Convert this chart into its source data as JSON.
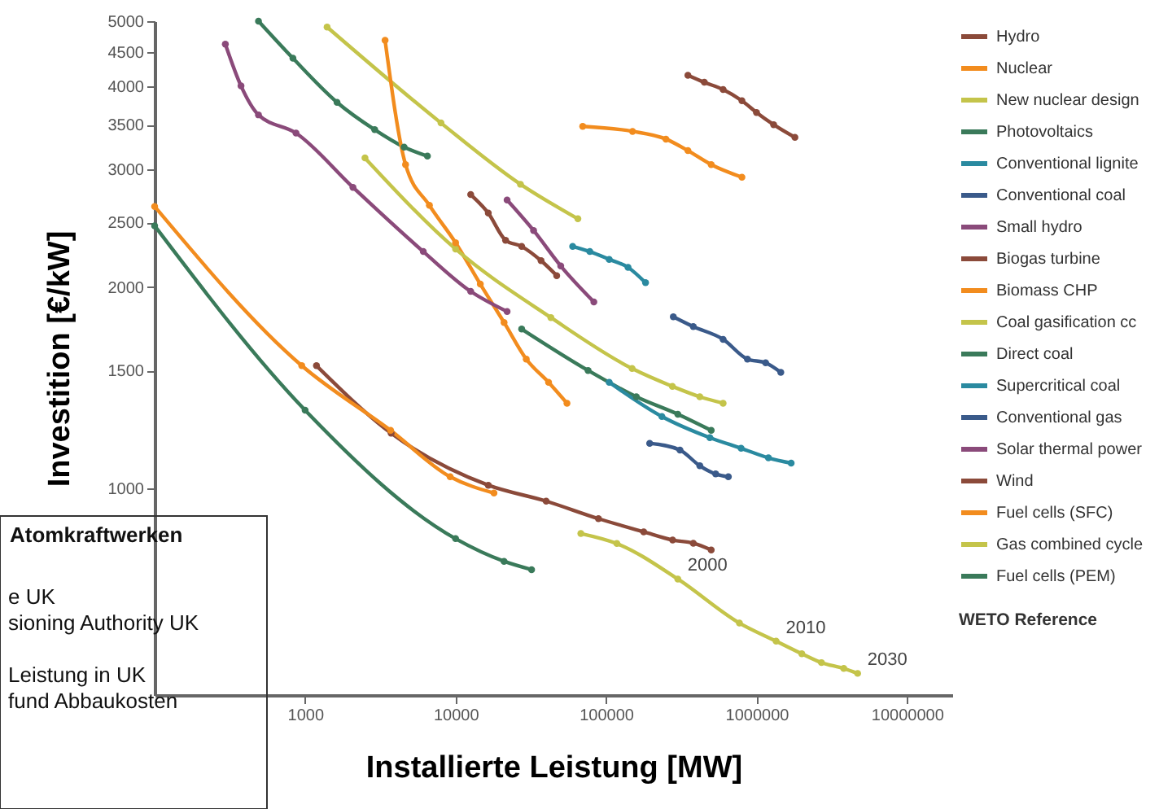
{
  "chart_data": {
    "type": "line",
    "xlabel": "Installierte Leistung [MW]",
    "ylabel": "Investition [€/kW]",
    "legend_title": "WETO Reference",
    "legend": "right",
    "log": "xy",
    "grid": false,
    "marker": "circle",
    "line_style": "solid",
    "xlim": [
      100,
      20000000
    ],
    "xticks": [
      1000,
      10000,
      100000,
      1000000,
      10000000
    ],
    "ylim": [
      490,
      5000
    ],
    "yticks": [
      1000,
      1500,
      2000,
      2500,
      3000,
      3500,
      4000,
      4500,
      5000
    ],
    "series": [
      {
        "name": "Hydro",
        "color": "#8b4a3a",
        "x": [
          350000,
          450000,
          600000,
          800000,
          1000000,
          1300000,
          1800000
        ],
        "values": [
          4150,
          4050,
          3950,
          3800,
          3650,
          3500,
          3350
        ]
      },
      {
        "name": "Nuclear",
        "color": "#f28c1e",
        "x": [
          70000,
          150000,
          250000,
          350000,
          500000,
          800000
        ],
        "values": [
          3480,
          3420,
          3330,
          3200,
          3050,
          2920
        ]
      },
      {
        "name": "New nuclear design",
        "color": "#c4c44a",
        "x": [
          1400,
          8000,
          27000,
          65000
        ],
        "values": [
          4900,
          3520,
          2850,
          2530
        ]
      },
      {
        "name": "Photovoltaics",
        "color": "#3a7a5a",
        "x": [
          490,
          830,
          1630,
          2900,
          4550,
          6500
        ],
        "values": [
          5000,
          4400,
          3780,
          3440,
          3240,
          3140
        ]
      },
      {
        "name": "Conventional lignite",
        "color": "#2a8aa0",
        "x": [
          60000,
          78000,
          105000,
          140000,
          183000
        ],
        "values": [
          2300,
          2260,
          2200,
          2140,
          2030
        ]
      },
      {
        "name": "Conventional coal",
        "color": "#3a5a8a",
        "x": [
          280000,
          380000,
          600000,
          870000,
          1150000,
          1450000
        ],
        "values": [
          1805,
          1745,
          1670,
          1560,
          1540,
          1490
        ]
      },
      {
        "name": "Small hydro",
        "color": "#8a4a7a",
        "x": [
          22000,
          33000,
          50000,
          83000
        ],
        "values": [
          2700,
          2430,
          2150,
          1900
        ]
      },
      {
        "name": "Biogas turbine",
        "color": "#8b4a3a",
        "x": [
          12600,
          16500,
          21500,
          27500,
          37000,
          47000
        ],
        "values": [
          2750,
          2580,
          2350,
          2300,
          2190,
          2080
        ]
      },
      {
        "name": "Biomass CHP",
        "color": "#f28c1e",
        "x": [
          3400,
          4650,
          6700,
          10000,
          14600,
          21000,
          29500,
          41500,
          55000
        ],
        "values": [
          4680,
          3050,
          2650,
          2330,
          2020,
          1770,
          1560,
          1440,
          1340
        ]
      },
      {
        "name": "Coal gasification cc",
        "color": "#c4c44a",
        "x": [
          2500,
          10000,
          43000,
          149000,
          276000,
          420000,
          600000
        ],
        "values": [
          3120,
          2280,
          1800,
          1510,
          1420,
          1370,
          1340
        ]
      },
      {
        "name": "Direct coal",
        "color": "#3a7a5a",
        "x": [
          27500,
          76000,
          159000,
          300000,
          500000
        ],
        "values": [
          1730,
          1500,
          1370,
          1290,
          1220
        ]
      },
      {
        "name": "Supercritical coal",
        "color": "#2a8aa0",
        "x": [
          105000,
          235000,
          490000,
          790000,
          1200000,
          1700000
        ],
        "values": [
          1440,
          1280,
          1190,
          1147,
          1110,
          1090
        ]
      },
      {
        "name": "Conventional gas",
        "color": "#3a5a8a",
        "x": [
          195000,
          310000,
          420000,
          535000,
          650000
        ],
        "values": [
          1167,
          1140,
          1080,
          1050,
          1040
        ]
      },
      {
        "name": "Solar thermal power",
        "color": "#8a4a7a",
        "x": [
          295,
          375,
          490,
          870,
          2080,
          6100,
          12600,
          22000
        ],
        "values": [
          4620,
          4000,
          3620,
          3400,
          2820,
          2260,
          1970,
          1838
        ]
      },
      {
        "name": "Wind",
        "color": "#8b4a3a",
        "x": [
          1190,
          3730,
          16500,
          40000,
          89000,
          178000,
          277000,
          380000,
          500000
        ],
        "values": [
          1525,
          1208,
          1010,
          956,
          900,
          860,
          836,
          827,
          808
        ]
      },
      {
        "name": "Fuel cells (SFC)",
        "color": "#f28c1e",
        "x": [
          100,
          950,
          3700,
          9200,
          18000
        ],
        "values": [
          2640,
          1525,
          1220,
          1040,
          983
        ]
      },
      {
        "name": "Gas combined cycle",
        "color": "#c4c44a",
        "x": [
          68000,
          118000,
          300000,
          770000,
          1350000,
          2000000,
          2700000,
          3800000,
          4700000
        ],
        "values": [
          855,
          826,
          731,
          628,
          590,
          565,
          548,
          537,
          528
        ]
      },
      {
        "name": "Fuel cells (PEM)",
        "color": "#3a7a5a",
        "x": [
          100,
          1000,
          10000,
          21000,
          32000
        ],
        "values": [
          2470,
          1308,
          840,
          777,
          755
        ]
      }
    ],
    "annotations": [
      {
        "text": "2000",
        "x": 300000,
        "y": 731
      },
      {
        "text": "2010",
        "x": 1350000,
        "y": 590
      },
      {
        "text": "2030",
        "x": 4700000,
        "y": 528
      },
      "Atomkraftwerken",
      "e UK",
      "sioning Authority UK",
      "Leistung in UK",
      "fund Abbaukosten"
    ]
  }
}
